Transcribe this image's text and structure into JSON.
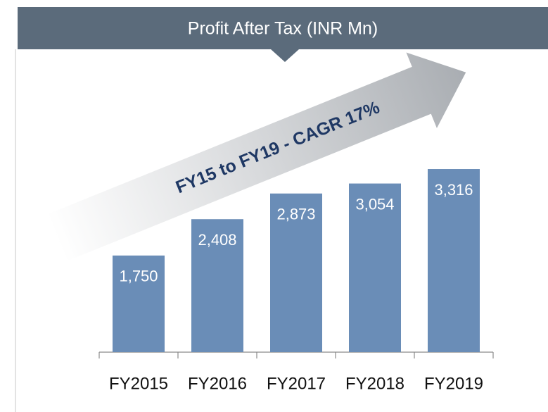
{
  "chart_data": {
    "type": "bar",
    "title": "Profit After Tax (INR Mn)",
    "annotation": "FY15 to FY19 - CAGR 17%",
    "categories": [
      "FY2015",
      "FY2016",
      "FY2017",
      "FY2018",
      "FY2019"
    ],
    "values": [
      1750,
      2408,
      2873,
      3054,
      3316
    ],
    "value_labels": [
      "1,750",
      "2,408",
      "2,873",
      "3,054",
      "3,316"
    ],
    "color": "#6a8db7"
  }
}
